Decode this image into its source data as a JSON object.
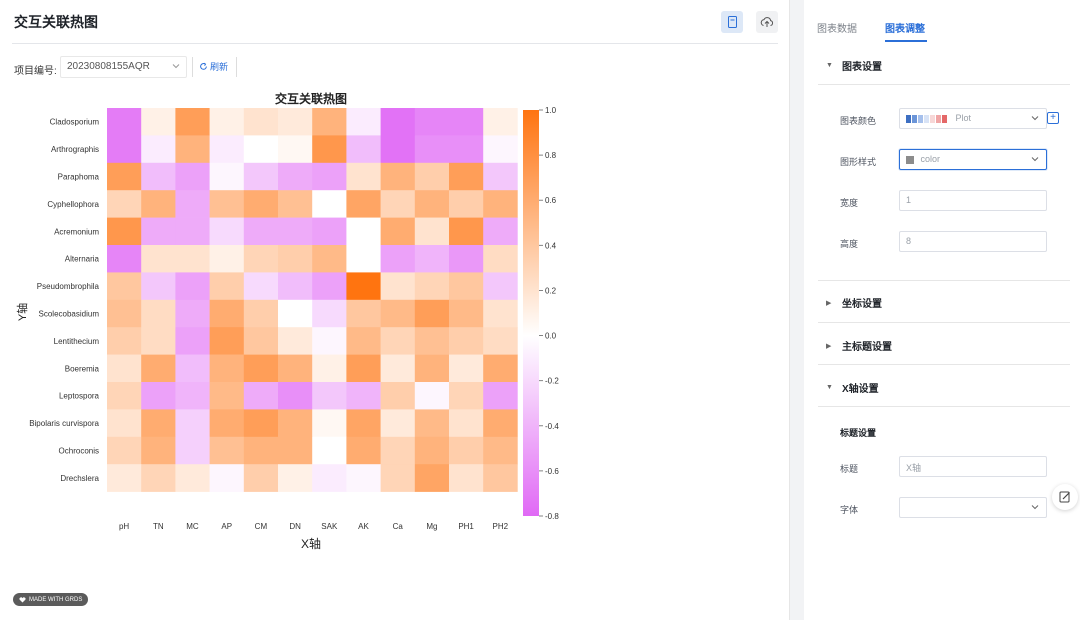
{
  "header": {
    "title": "交互关联热图"
  },
  "toolbar": {
    "project_label": "项目编号:",
    "project_value": "20230808155AQR",
    "refresh_label": "刷新"
  },
  "footer": {
    "credit": "MADE WITH GRDS"
  },
  "tabs": [
    {
      "label": "图表数据",
      "active": false
    },
    {
      "label": "图表调整",
      "active": true
    }
  ],
  "sections": {
    "chart_settings": "图表设置",
    "axis_settings": "坐标设置",
    "main_title_settings": "主标题设置",
    "x_axis_settings": "X轴设置"
  },
  "fields": {
    "palette_label": "图表颜色",
    "palette_value": "Plot",
    "shape_label": "图形样式",
    "shape_value": "color",
    "width_label": "宽度",
    "width_value": "1",
    "height_label": "高度",
    "height_value": "8",
    "title_setting_head": "标题设置",
    "x_title_label": "标题",
    "x_title_value": "X轴",
    "font_label": "字体"
  },
  "colors": {
    "accent": "#2b6fd8",
    "neg": "#e069f5",
    "pos": "#ff7410"
  },
  "chart_data": {
    "type": "heatmap",
    "title": "交互关联热图",
    "xlabel": "X轴",
    "ylabel": "Y轴",
    "x": [
      "pH",
      "TN",
      "MC",
      "AP",
      "CM",
      "DN",
      "SAK",
      "AK",
      "Ca",
      "Mg",
      "PH1",
      "PH2"
    ],
    "y": [
      "Cladosporium",
      "Arthrographis",
      "Paraphoma",
      "Cyphellophora",
      "Acremonium",
      "Alternaria",
      "Pseudombrophila",
      "Scolecobasidium",
      "Lentithecium",
      "Boeremia",
      "Leptospora",
      "Bipolaris curvispora",
      "Ochroconis",
      "Drechslera"
    ],
    "values": [
      [
        -0.7,
        0.1,
        0.7,
        0.1,
        0.2,
        0.15,
        0.55,
        -0.1,
        -0.75,
        -0.65,
        -0.65,
        0.1
      ],
      [
        -0.7,
        -0.1,
        0.55,
        -0.1,
        0.0,
        0.05,
        0.75,
        -0.35,
        -0.75,
        -0.6,
        -0.6,
        -0.05
      ],
      [
        0.7,
        -0.35,
        -0.5,
        -0.05,
        -0.3,
        -0.45,
        -0.5,
        0.2,
        0.55,
        0.35,
        0.7,
        -0.3
      ],
      [
        0.3,
        0.55,
        -0.45,
        0.45,
        0.6,
        0.45,
        0.0,
        0.65,
        0.3,
        0.55,
        0.35,
        0.55
      ],
      [
        0.75,
        -0.45,
        -0.45,
        -0.2,
        -0.45,
        -0.45,
        -0.5,
        0.0,
        0.6,
        0.2,
        0.75,
        -0.45
      ],
      [
        -0.65,
        0.2,
        0.2,
        0.1,
        0.3,
        0.35,
        0.5,
        0.0,
        -0.5,
        -0.4,
        -0.55,
        0.25
      ],
      [
        0.4,
        -0.3,
        -0.5,
        0.35,
        -0.2,
        -0.35,
        -0.5,
        1.0,
        0.2,
        0.3,
        0.4,
        -0.3
      ],
      [
        0.45,
        0.25,
        -0.45,
        0.6,
        0.35,
        0.0,
        -0.2,
        0.4,
        0.5,
        0.7,
        0.5,
        0.2
      ],
      [
        0.35,
        0.25,
        -0.5,
        0.7,
        0.4,
        0.15,
        -0.05,
        0.5,
        0.3,
        0.45,
        0.35,
        0.25
      ],
      [
        0.2,
        0.6,
        -0.35,
        0.55,
        0.7,
        0.55,
        0.1,
        0.7,
        0.15,
        0.55,
        0.15,
        0.6
      ],
      [
        0.3,
        -0.5,
        -0.4,
        0.5,
        -0.45,
        -0.6,
        -0.3,
        -0.4,
        0.35,
        -0.05,
        0.3,
        -0.5
      ],
      [
        0.2,
        0.6,
        -0.25,
        0.6,
        0.7,
        0.55,
        0.05,
        0.65,
        0.15,
        0.5,
        0.2,
        0.6
      ],
      [
        0.3,
        0.55,
        -0.25,
        0.45,
        0.55,
        0.55,
        0.0,
        0.6,
        0.3,
        0.55,
        0.35,
        0.5
      ],
      [
        0.15,
        0.3,
        0.15,
        -0.05,
        0.35,
        0.1,
        -0.1,
        -0.05,
        0.3,
        0.65,
        0.2,
        0.4
      ]
    ],
    "zlim": [
      -0.8,
      1.0
    ],
    "colorbar_ticks": [
      1.0,
      0.8,
      0.6,
      0.4,
      0.2,
      0.0,
      -0.2,
      -0.4,
      -0.6,
      -0.8
    ],
    "colorbar_labels": [
      "1.0",
      "0.8",
      "0.6",
      "0.4",
      "0.2",
      "0.0",
      "-0.2",
      "-0.4",
      "-0.6",
      "-0.8"
    ],
    "legend": "right"
  }
}
